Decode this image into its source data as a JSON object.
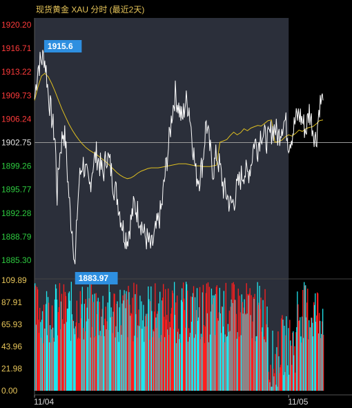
{
  "colors": {
    "background": "#000000",
    "session_panel": "#2b2f3a",
    "up": "#ff1f1f",
    "down": "#1fe6ee",
    "price_line": "#ffffff",
    "avg_line": "#e0c020",
    "up_text": "#ff3b3b",
    "down_text": "#2ecc40",
    "neutral_text": "#e6e6e6",
    "callout": "#2e8fe0"
  },
  "chart_data": {
    "type": "line",
    "title": "现货黄金 XAU 分时 (最近2天)",
    "price_axis": {
      "ticks": [
        "1920.20",
        "1916.71",
        "1913.22",
        "1909.73",
        "1906.24",
        "1902.75",
        "1899.26",
        "1895.77",
        "1892.28",
        "1888.79",
        "1885.30"
      ],
      "reference": 1902.75,
      "ylim": [
        1885.3,
        1920.2
      ]
    },
    "volume_axis": {
      "ticks": [
        "109.89",
        "87.91",
        "65.93",
        "43.96",
        "21.98",
        "0.00"
      ],
      "ylim": [
        0,
        109.89
      ]
    },
    "x_labels": [
      "11/04",
      "11/05"
    ],
    "x_range": [
      0,
      420
    ],
    "session_break": 370,
    "annotations": [
      {
        "label": "1915.6",
        "kind": "high",
        "x": 14
      },
      {
        "label": "1883.97",
        "kind": "low",
        "x": 59
      }
    ],
    "series": [
      {
        "role": "price",
        "x": [
          0,
          5,
          10,
          14,
          17,
          20,
          25,
          30,
          33,
          35,
          38,
          42,
          45,
          48,
          52,
          56,
          59,
          62,
          65,
          70,
          75,
          80,
          85,
          90,
          95,
          100,
          105,
          110,
          115,
          120,
          125,
          130,
          135,
          140,
          145,
          150,
          155,
          160,
          165,
          170,
          175,
          180,
          185,
          190,
          195,
          200,
          205,
          210,
          215,
          220,
          225,
          230,
          235,
          240,
          245,
          250,
          255,
          260,
          265,
          270,
          275,
          280,
          285,
          290,
          295,
          300,
          305,
          310,
          315,
          320,
          325,
          330,
          335,
          340,
          345,
          350,
          355,
          360,
          365,
          370,
          375,
          380,
          385,
          390,
          395,
          400,
          405,
          410,
          415,
          420
        ],
        "y": [
          1909.2,
          1914.0,
          1915.0,
          1915.6,
          1913.5,
          1910.0,
          1906.5,
          1903.0,
          1894.8,
          1899.0,
          1902.0,
          1904.5,
          1903.0,
          1898.0,
          1892.0,
          1889.0,
          1883.97,
          1892.0,
          1897.0,
          1900.0,
          1898.0,
          1896.0,
          1899.5,
          1901.0,
          1899.5,
          1898.0,
          1901.0,
          1899.5,
          1896.5,
          1895.0,
          1892.0,
          1889.5,
          1888.5,
          1891.0,
          1893.5,
          1892.5,
          1891.0,
          1889.0,
          1888.2,
          1887.0,
          1889.0,
          1891.0,
          1893.0,
          1898.0,
          1902.0,
          1907.0,
          1910.0,
          1908.0,
          1906.0,
          1909.0,
          1908.0,
          1903.0,
          1898.0,
          1897.5,
          1900.0,
          1906.0,
          1902.0,
          1898.5,
          1901.0,
          1899.0,
          1896.0,
          1895.0,
          1893.5,
          1894.0,
          1896.0,
          1897.5,
          1898.5,
          1898.0,
          1899.5,
          1903.0,
          1902.0,
          1904.5,
          1903.5,
          1903.0,
          1904.5,
          1905.0,
          1903.5,
          1905.5,
          1906.0,
          1902.75,
          1904.0,
          1906.0,
          1907.0,
          1906.0,
          1904.5,
          1907.5,
          1905.0,
          1903.0,
          1908.5,
          1909.0
        ]
      },
      {
        "role": "average",
        "x": [
          0,
          5,
          10,
          15,
          20,
          25,
          30,
          35,
          40,
          45,
          50,
          55,
          60,
          65,
          70,
          75,
          80,
          85,
          90,
          95,
          100,
          105,
          110,
          115,
          120,
          125,
          130,
          135,
          140,
          145,
          150,
          155,
          160,
          165,
          170,
          175,
          180,
          185,
          190,
          195,
          200,
          205,
          210,
          215,
          220,
          225,
          230,
          235,
          240,
          245,
          250,
          255,
          260,
          265,
          270,
          275,
          280,
          285,
          290,
          295,
          300,
          305,
          310,
          315,
          320,
          325,
          330,
          335,
          340,
          345,
          350,
          355,
          360,
          365,
          370,
          375,
          380,
          385,
          390,
          395,
          400,
          405,
          410,
          415,
          420
        ],
        "y": [
          1909.0,
          1911.0,
          1912.6,
          1913.0,
          1912.5,
          1911.5,
          1910.3,
          1909.0,
          1907.7,
          1906.6,
          1905.5,
          1904.6,
          1903.8,
          1903.1,
          1902.5,
          1902.0,
          1901.6,
          1901.3,
          1901.0,
          1900.6,
          1900.2,
          1899.8,
          1899.3,
          1898.8,
          1898.3,
          1897.9,
          1897.6,
          1897.4,
          1897.5,
          1897.8,
          1898.2,
          1898.5,
          1898.7,
          1898.9,
          1899.0,
          1899.0,
          1899.0,
          1899.1,
          1899.2,
          1899.3,
          1899.4,
          1899.5,
          1899.6,
          1899.6,
          1899.6,
          1899.5,
          1899.4,
          1899.3,
          1899.3,
          1899.2,
          1899.2,
          1899.2,
          1899.3,
          1899.4,
          1902.8,
          1903.0,
          1903.2,
          1903.8,
          1904.3,
          1903.9,
          1904.2,
          1904.8,
          1904.5,
          1904.9,
          1905.1,
          1905.3,
          1905.2,
          1905.6,
          1906.0,
          1906.1,
          1902.8,
          1902.9,
          1903.1,
          1903.6,
          1903.9,
          1903.7,
          1904.1,
          1904.6,
          1904.4,
          1904.8,
          1905.0,
          1905.1,
          1905.5,
          1906.0,
          1906.1
        ]
      }
    ]
  }
}
